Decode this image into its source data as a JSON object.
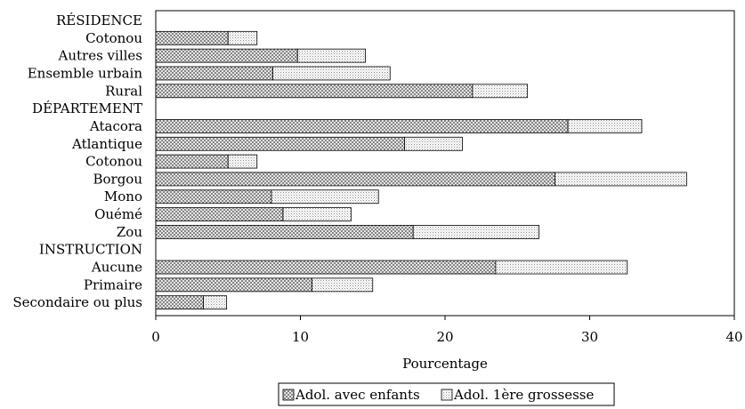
{
  "chart_data": {
    "type": "bar",
    "orientation": "horizontal",
    "stacked": true,
    "categories": [
      "RÉSIDENCE",
      "Cotonou",
      "Autres villes",
      "Ensemble urbain",
      "Rural",
      "DÉPARTEMENT",
      "Atacora",
      "Atlantique",
      "Cotonou",
      "Borgou",
      "Mono",
      "Ouémé",
      "Zou",
      "INSTRUCTION",
      "Aucune",
      "Primaire",
      "Secondaire ou plus"
    ],
    "series": [
      {
        "name": "Adol. avec enfants",
        "values": [
          null,
          5.0,
          9.8,
          8.1,
          21.9,
          null,
          28.5,
          17.2,
          5.0,
          27.6,
          8.0,
          8.8,
          17.8,
          null,
          23.5,
          10.8,
          3.3
        ]
      },
      {
        "name": "Adol. 1ère grossesse",
        "values": [
          null,
          2.0,
          4.7,
          8.1,
          3.8,
          null,
          5.1,
          4.0,
          2.0,
          9.1,
          7.4,
          4.7,
          8.7,
          null,
          9.1,
          4.2,
          1.6
        ]
      }
    ],
    "xlabel": "Pourcentage",
    "ylabel": "",
    "xlim": [
      0,
      40
    ],
    "xticks": [
      "0",
      "10",
      "20",
      "30",
      "40"
    ],
    "legend_position": "bottom",
    "grid": false
  },
  "colors": {
    "series1": "#8c8c8c",
    "series2": "#d4d4d4"
  }
}
